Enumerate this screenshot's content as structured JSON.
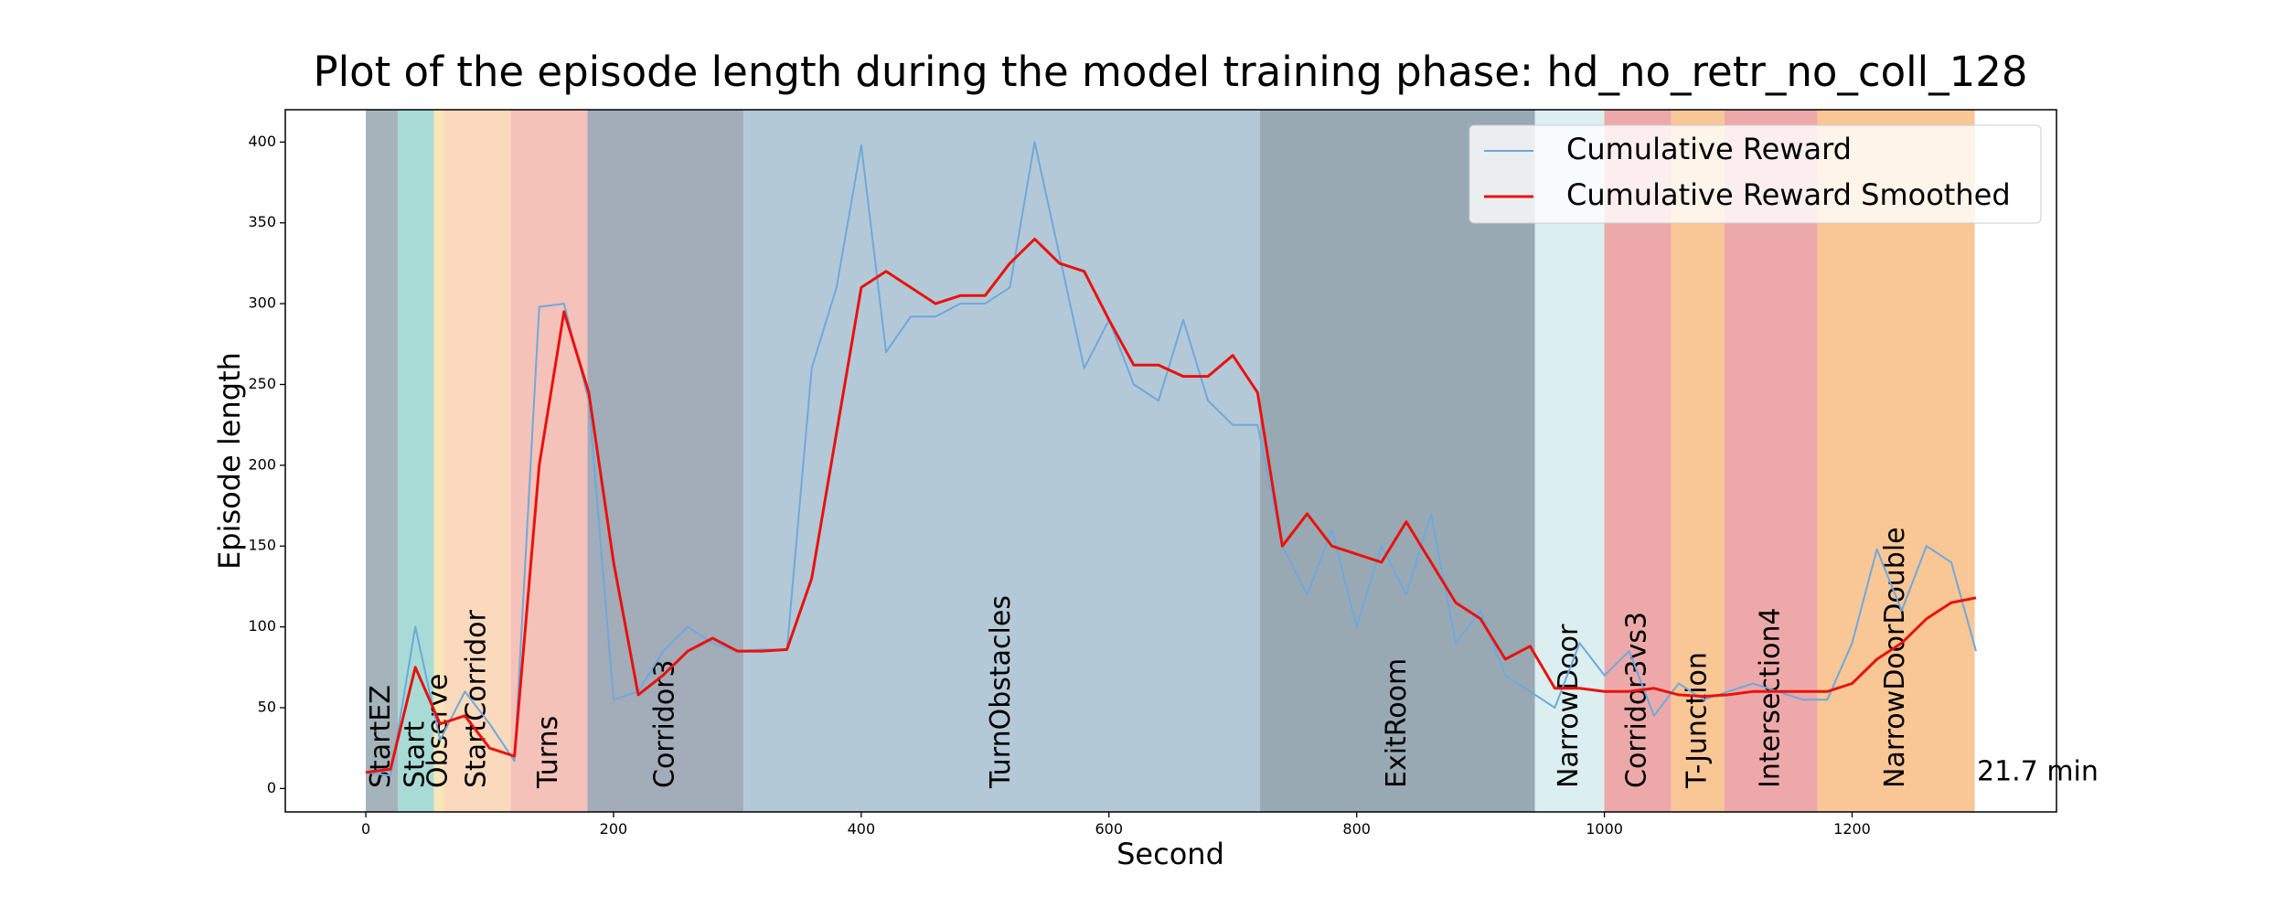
{
  "chart_data": {
    "type": "line",
    "title": "Plot of the episode length during the model training phase: hd_no_retr_no_coll_128",
    "x_label": "Second",
    "y_label": "Episode length",
    "xlim": [
      -65,
      1365
    ],
    "ylim": [
      -14.5,
      420
    ],
    "xticks": [
      0,
      200,
      400,
      600,
      800,
      1000,
      1200
    ],
    "yticks": [
      0,
      50,
      100,
      150,
      200,
      250,
      300,
      350,
      400
    ],
    "legend": "upper right",
    "annotation": "21.7 min",
    "regions": [
      {
        "label": "StartEZ",
        "start": 0,
        "end": 26,
        "color": "#a5b4bb"
      },
      {
        "label": "Start",
        "start": 26,
        "end": 55,
        "color": "#a8dbd6"
      },
      {
        "label": "Observe",
        "start": 55,
        "end": 63,
        "color": "#f9e6b8"
      },
      {
        "label": "StartCorridor",
        "start": 63,
        "end": 117,
        "color": "#fbd9bd"
      },
      {
        "label": "Turns",
        "start": 117,
        "end": 179,
        "color": "#f4c2b9"
      },
      {
        "label": "Corridor3",
        "start": 179,
        "end": 305,
        "color": "#a3acb9"
      },
      {
        "label": "TurnObstacles",
        "start": 305,
        "end": 722,
        "color": "#b3c9d7"
      },
      {
        "label": "ExitRoom",
        "start": 722,
        "end": 944,
        "color": "#98a9b4"
      },
      {
        "label": "NarrowDoor",
        "start": 944,
        "end": 1000,
        "color": "#dbeef0"
      },
      {
        "label": "Corridor3vs3",
        "start": 1000,
        "end": 1054,
        "color": "#eda9a9"
      },
      {
        "label": "T-Junction",
        "start": 1054,
        "end": 1097,
        "color": "#f9c796"
      },
      {
        "label": "Intersection4",
        "start": 1097,
        "end": 1172,
        "color": "#eda9a9"
      },
      {
        "label": "NarrowDoorDouble",
        "start": 1172,
        "end": 1299,
        "color": "#f9c796"
      }
    ],
    "x": [
      0,
      20,
      40,
      60,
      80,
      100,
      120,
      140,
      160,
      180,
      200,
      220,
      240,
      260,
      280,
      300,
      320,
      340,
      360,
      380,
      400,
      420,
      440,
      460,
      480,
      500,
      520,
      540,
      560,
      580,
      600,
      620,
      640,
      660,
      680,
      700,
      720,
      740,
      760,
      780,
      800,
      820,
      840,
      860,
      880,
      900,
      920,
      940,
      960,
      980,
      1000,
      1020,
      1040,
      1060,
      1080,
      1100,
      1120,
      1140,
      1160,
      1180,
      1200,
      1220,
      1240,
      1260,
      1280,
      1300
    ],
    "series": [
      {
        "name": "Cumulative Reward",
        "color": "#6fa8dc",
        "width": 2,
        "values": [
          10,
          8,
          100,
          30,
          60,
          40,
          17,
          298,
          300,
          240,
          55,
          60,
          85,
          100,
          90,
          85,
          86,
          86,
          260,
          310,
          398,
          270,
          292,
          292,
          300,
          300,
          310,
          400,
          330,
          260,
          290,
          250,
          240,
          290,
          240,
          225,
          225,
          150,
          120,
          160,
          100,
          150,
          120,
          170,
          90,
          110,
          70,
          60,
          50,
          90,
          70,
          85,
          45,
          65,
          55,
          60,
          65,
          60,
          55,
          55,
          90,
          148,
          110,
          150,
          140,
          85
        ]
      },
      {
        "name": "Cumulative Reward Smoothed",
        "color": "#e8120c",
        "width": 3,
        "values": [
          10,
          12,
          75,
          40,
          45,
          25,
          20,
          200,
          295,
          245,
          140,
          58,
          70,
          85,
          93,
          85,
          85,
          86,
          130,
          220,
          310,
          320,
          310,
          300,
          305,
          305,
          325,
          340,
          325,
          320,
          290,
          262,
          262,
          255,
          255,
          268,
          245,
          150,
          170,
          150,
          145,
          140,
          165,
          140,
          115,
          105,
          80,
          88,
          62,
          62,
          60,
          60,
          62,
          58,
          57,
          58,
          60,
          60,
          60,
          60,
          65,
          80,
          90,
          105,
          115,
          118
        ]
      }
    ]
  }
}
